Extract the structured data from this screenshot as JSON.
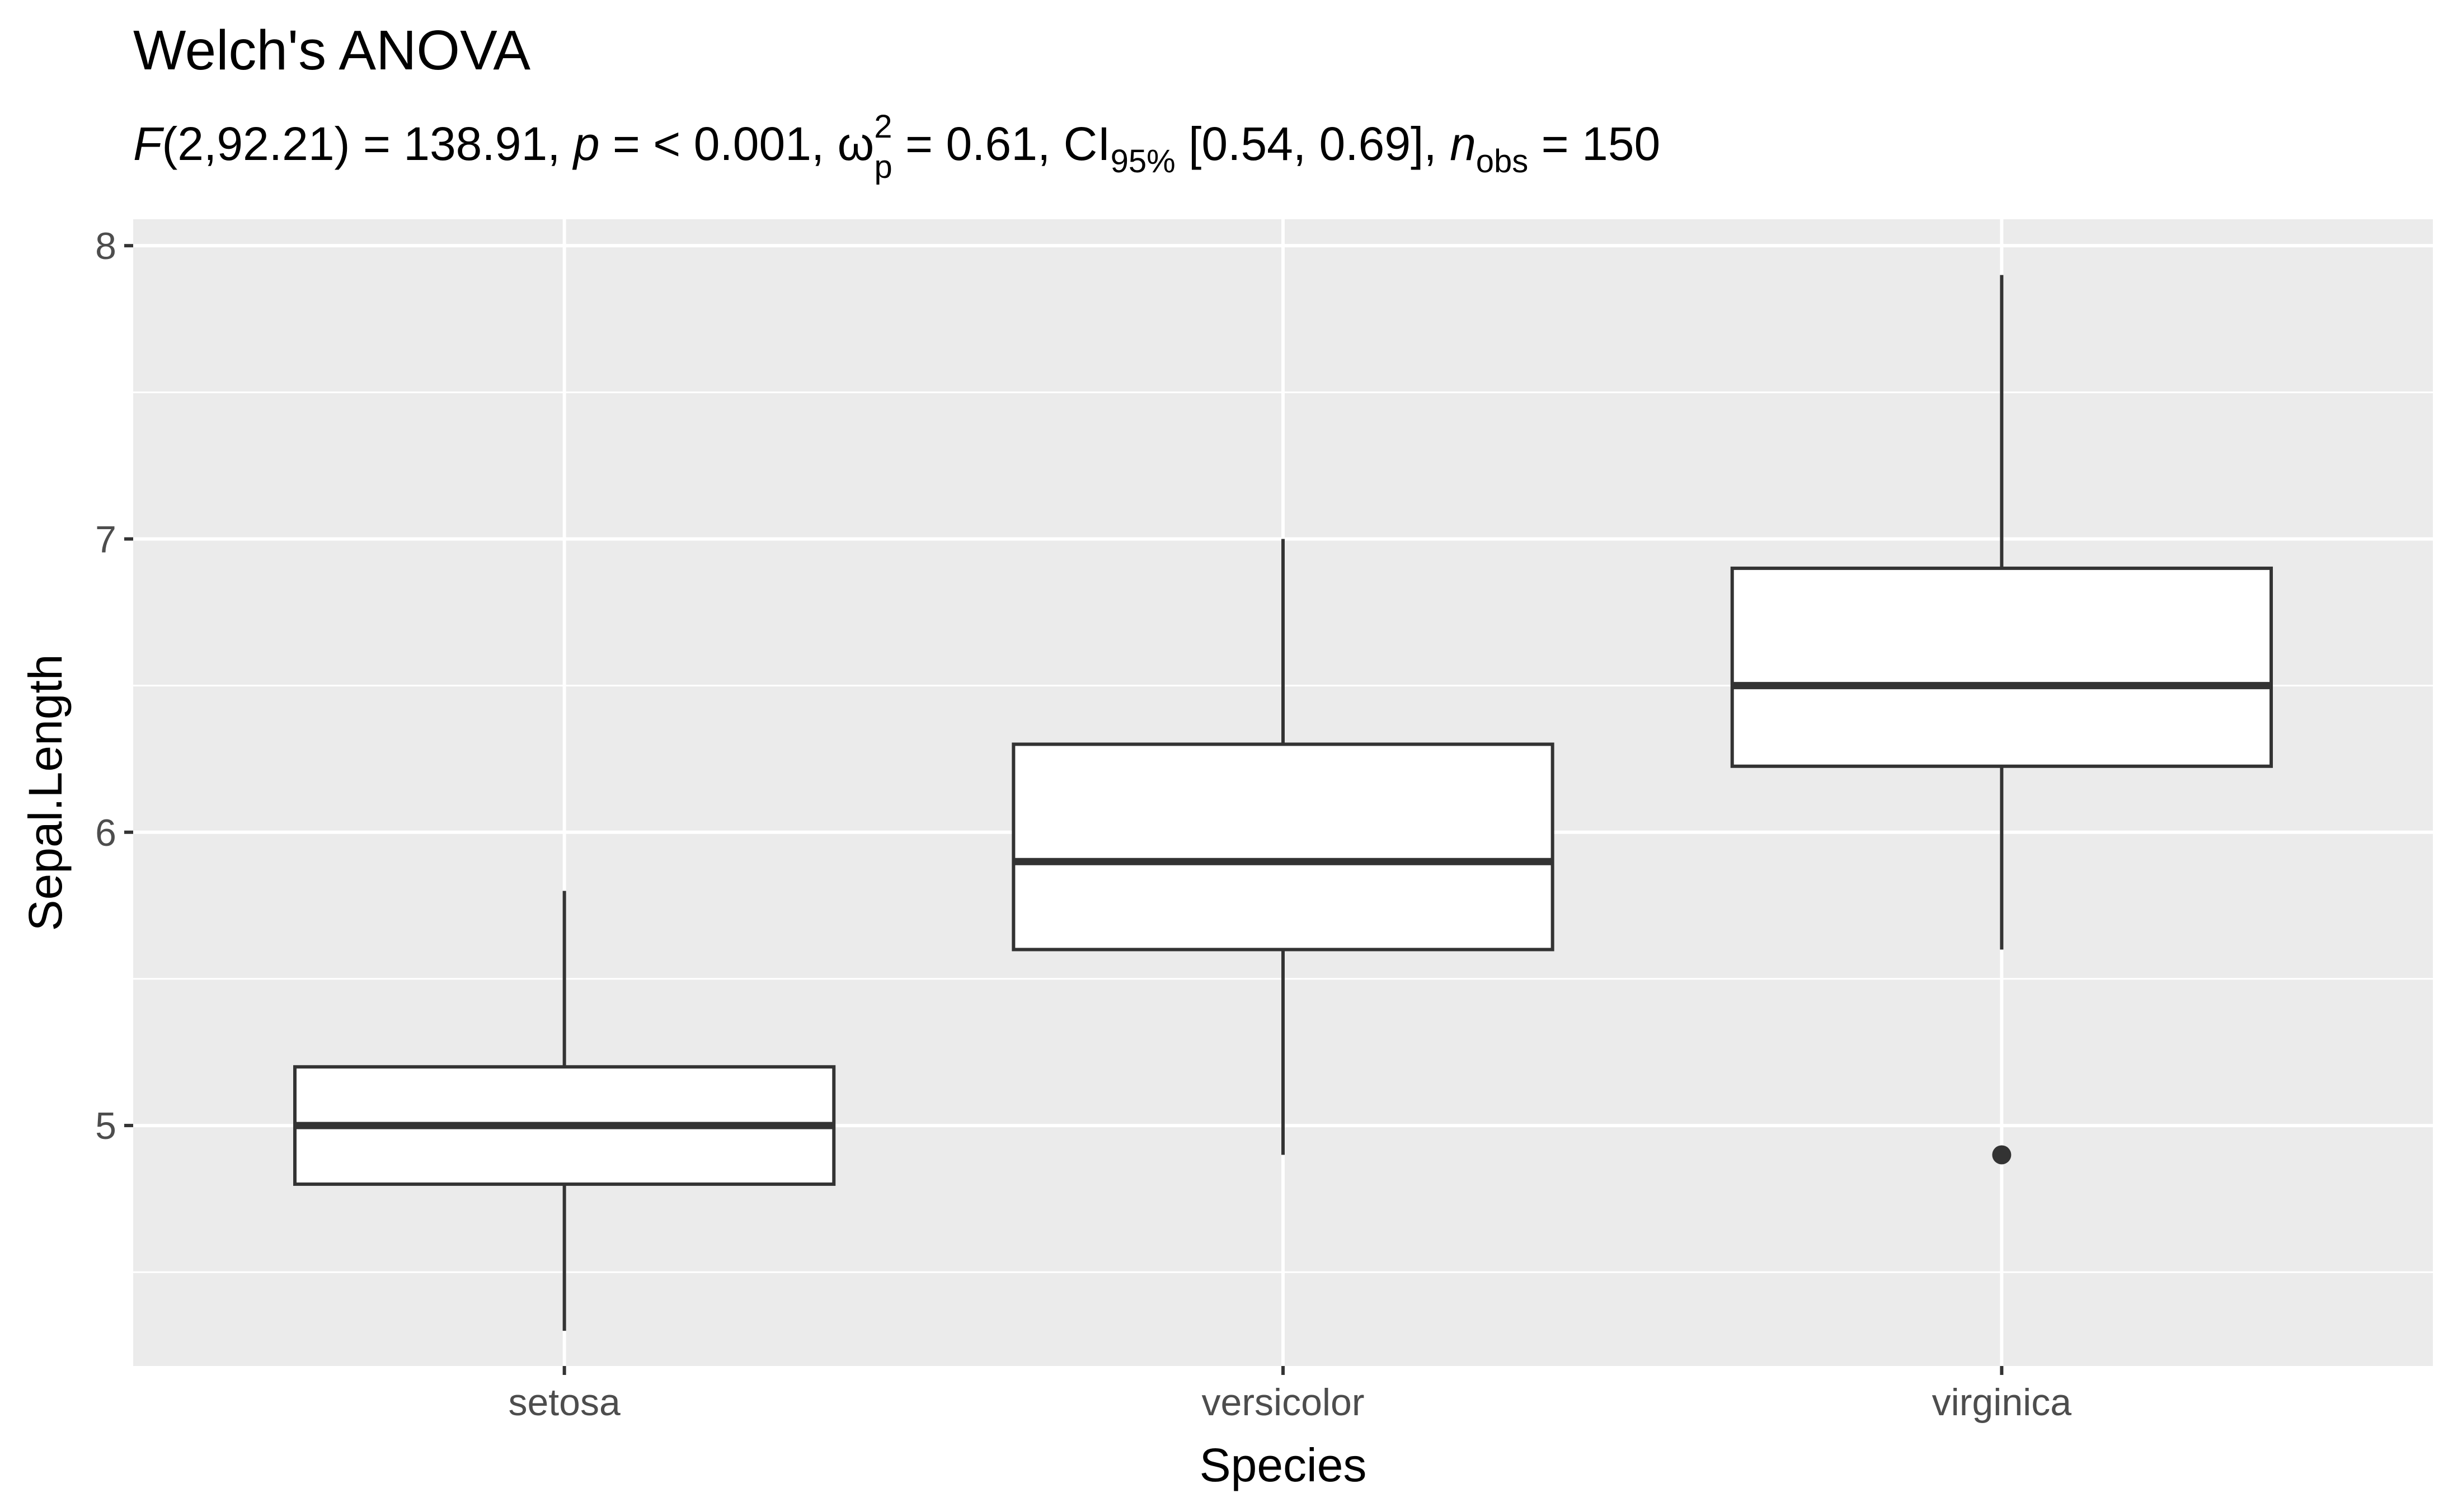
{
  "chart_data": {
    "type": "box",
    "title": "Welch's ANOVA",
    "subtitle": {
      "f_symbol": "F",
      "f_args": "(2,92.21) = 138.91, ",
      "p_symbol": "p",
      "p_text": " = < 0.001, ",
      "omega": "ω",
      "omega_sup": "2",
      "omega_sub": "p",
      "omega_text": " = 0.61, CI",
      "ci_sub": "95%",
      "ci_text": " [0.54, 0.69], ",
      "n_symbol": "n",
      "n_sub": "obs",
      "n_text": " = 150"
    },
    "xlabel": "Species",
    "ylabel": "Sepal.Length",
    "ylim": [
      4.18,
      8.09
    ],
    "y_ticks": [
      5,
      6,
      7,
      8
    ],
    "y_minor_ticks": [
      4.5,
      5.5,
      6.5,
      7.5
    ],
    "grid": true,
    "categories": [
      "setosa",
      "versicolor",
      "virginica"
    ],
    "boxes": [
      {
        "category": "setosa",
        "whisker_low": 4.3,
        "q1": 4.8,
        "median": 5.0,
        "q3": 5.2,
        "whisker_high": 5.8,
        "outliers": []
      },
      {
        "category": "versicolor",
        "whisker_low": 4.9,
        "q1": 5.6,
        "median": 5.9,
        "q3": 6.3,
        "whisker_high": 7.0,
        "outliers": []
      },
      {
        "category": "virginica",
        "whisker_low": 5.6,
        "q1": 6.225,
        "median": 6.5,
        "q3": 6.9,
        "whisker_high": 7.9,
        "outliers": [
          4.9
        ]
      }
    ],
    "colors": {
      "panel": "#ebebeb",
      "grid": "#ffffff",
      "box_fill": "#ffffff",
      "box_stroke": "#333333",
      "text": "#000000",
      "tick_text": "#4d4d4d"
    }
  }
}
